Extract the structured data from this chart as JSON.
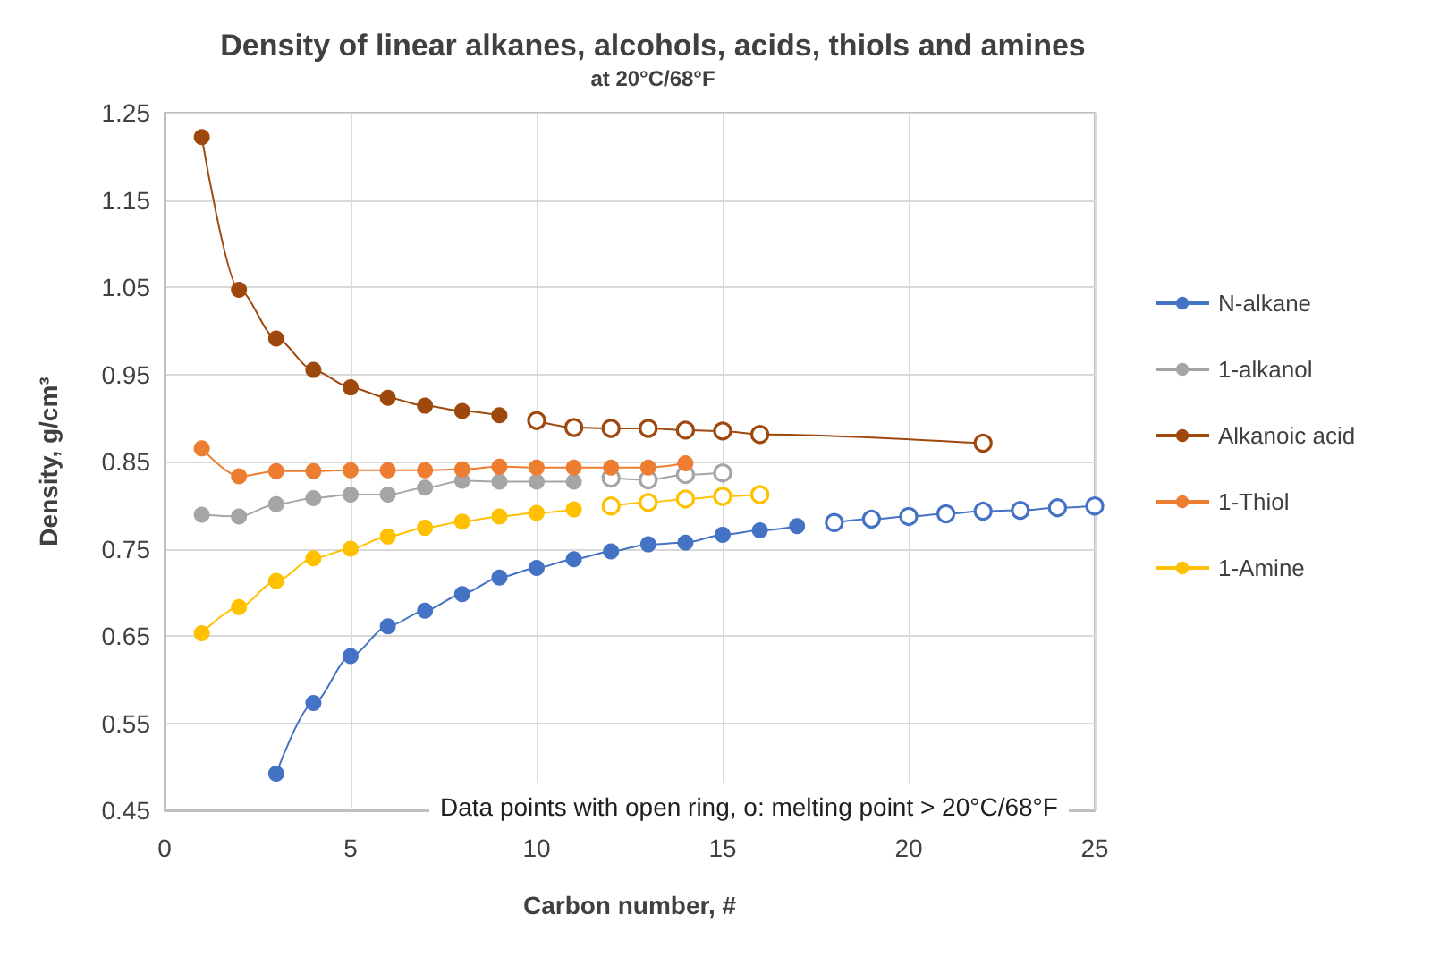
{
  "chart_data": {
    "type": "line",
    "title": "Density of linear alkanes, alcohols, acids, thiols and amines",
    "subtitle": "at 20°C/68°F",
    "xlabel": "Carbon number, #",
    "ylabel": "Density, g/cm³",
    "annotations": [
      "Data points with open ring, o: melting point > 20°C/68°F"
    ],
    "series": [
      {
        "name": "N-alkane",
        "color": "#4472c4",
        "x": [
          3,
          4,
          5,
          6,
          7,
          8,
          9,
          10,
          11,
          12,
          13,
          14,
          15,
          16,
          17
        ],
        "values": [
          0.492,
          0.573,
          0.627,
          0.661,
          0.679,
          0.698,
          0.717,
          0.728,
          0.738,
          0.747,
          0.755,
          0.757,
          0.766,
          0.771,
          0.776
        ]
      },
      {
        "name": "1-alkanol",
        "color": "#a5a5a5",
        "x": [
          1,
          2,
          3,
          4,
          5,
          6,
          7,
          8,
          9,
          10,
          11
        ],
        "values": [
          0.789,
          0.787,
          0.801,
          0.808,
          0.812,
          0.812,
          0.82,
          0.828,
          0.827,
          0.827,
          0.827
        ]
      },
      {
        "name": "Alkanoic acid",
        "color": "#9e480e",
        "x": [
          1,
          2,
          3,
          4,
          5,
          6,
          7,
          8,
          9
        ],
        "values": [
          1.222,
          1.047,
          0.991,
          0.955,
          0.935,
          0.923,
          0.914,
          0.908,
          0.903
        ]
      },
      {
        "name": "1-Thiol",
        "color": "#ed7d31",
        "x": [
          1,
          2,
          3,
          4,
          5,
          6,
          7,
          8,
          9,
          10,
          11,
          12,
          13,
          14
        ],
        "values": [
          0.865,
          0.833,
          0.839,
          0.839,
          0.84,
          0.84,
          0.84,
          0.841,
          0.844,
          0.843,
          0.843,
          0.843,
          0.843,
          0.848
        ]
      },
      {
        "name": "1-Amine",
        "color": "#ffc000",
        "x": [
          1,
          2,
          3,
          4,
          5,
          6,
          7,
          8,
          9,
          10,
          11
        ],
        "values": [
          0.653,
          0.683,
          0.713,
          0.739,
          0.75,
          0.764,
          0.774,
          0.781,
          0.787,
          0.791,
          0.795
        ]
      },
      {
        "color": "#4472c4",
        "x": [
          18,
          19,
          20,
          21,
          22,
          23,
          24,
          25
        ],
        "values": [
          0.78,
          0.784,
          0.787,
          0.79,
          0.793,
          0.794,
          0.797,
          0.799
        ]
      },
      {
        "color": "#a5a5a5",
        "x": [
          12,
          13,
          14,
          15
        ],
        "values": [
          0.831,
          0.829,
          0.835,
          0.837
        ]
      },
      {
        "color": "#9e480e",
        "x": [
          10,
          11,
          12,
          13,
          14,
          15,
          16,
          22
        ],
        "values": [
          0.897,
          0.889,
          0.888,
          0.888,
          0.886,
          0.885,
          0.881,
          0.871
        ]
      },
      {
        "color": "#ffc000",
        "x": [
          12,
          13,
          14,
          15,
          16
        ],
        "values": [
          0.799,
          0.803,
          0.807,
          0.81,
          0.812
        ]
      }
    ],
    "xlim": [
      0,
      25
    ],
    "xticks": [
      0,
      5,
      10,
      15,
      20,
      25
    ],
    "ylim": [
      0.45,
      1.25
    ],
    "yticks": [
      0.45,
      0.55,
      0.65,
      0.75,
      0.85,
      0.95,
      1.05,
      1.15,
      1.25
    ],
    "grid": true,
    "legend": "right",
    "marker": "circle",
    "line_style": "solid"
  }
}
